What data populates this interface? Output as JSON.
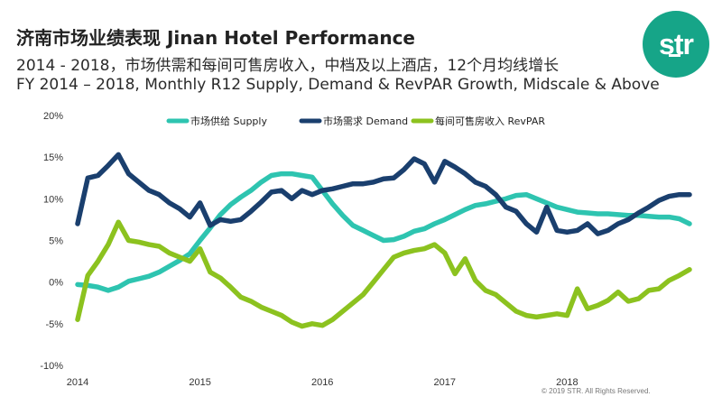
{
  "header": {
    "title": "济南市场业绩表现 Jinan Hotel Performance",
    "subtitle_cn": "2014 - 2018，市场供需和每间可售房收入，中档及以上酒店，12个月均线增长",
    "subtitle_en": "FY 2014 – 2018, Monthly R12 Supply, Demand & RevPAR Growth, Midscale & Above"
  },
  "logo": {
    "text": "str",
    "color": "#16a588"
  },
  "footer": {
    "copyright": "© 2019 STR. All Rights Reserved."
  },
  "chart_data": {
    "type": "line",
    "title": "",
    "xlabel": "",
    "ylabel": "",
    "x_ticks": [
      "2014",
      "2015",
      "2016",
      "2017",
      "2018"
    ],
    "y_ticks": [
      "20%",
      "15%",
      "10%",
      "5%",
      "0%",
      "-5%",
      "-10%"
    ],
    "ylim": [
      -10,
      20
    ],
    "grid": false,
    "legend_position": "top",
    "x_range": [
      2014.0,
      2019.0
    ],
    "series": [
      {
        "name": "市场供给 Supply",
        "color": "#2ec4b0",
        "x": [
          2014.0,
          2014.083,
          2014.167,
          2014.25,
          2014.333,
          2014.417,
          2014.5,
          2014.583,
          2014.667,
          2014.75,
          2014.833,
          2014.917,
          2015.0,
          2015.083,
          2015.167,
          2015.25,
          2015.333,
          2015.417,
          2015.5,
          2015.583,
          2015.667,
          2015.75,
          2015.833,
          2015.917,
          2016.0,
          2016.083,
          2016.167,
          2016.25,
          2016.333,
          2016.417,
          2016.5,
          2016.583,
          2016.667,
          2016.75,
          2016.833,
          2016.917,
          2017.0,
          2017.083,
          2017.167,
          2017.25,
          2017.333,
          2017.417,
          2017.5,
          2017.583,
          2017.667,
          2017.75,
          2017.833,
          2017.917,
          2018.0,
          2018.083,
          2018.167,
          2018.25,
          2018.333,
          2018.417,
          2018.5,
          2018.583,
          2018.667,
          2018.75,
          2018.833,
          2018.917,
          2019.0
        ],
        "values": [
          -0.3,
          -0.4,
          -0.6,
          -1.0,
          -0.6,
          0.1,
          0.4,
          0.7,
          1.2,
          1.9,
          2.6,
          3.4,
          5.0,
          6.5,
          8.1,
          9.3,
          10.2,
          11.0,
          12.0,
          12.8,
          13.0,
          13.0,
          12.8,
          12.6,
          11.0,
          9.4,
          8.0,
          6.8,
          6.2,
          5.6,
          5.0,
          5.1,
          5.5,
          6.1,
          6.4,
          7.0,
          7.5,
          8.1,
          8.7,
          9.2,
          9.4,
          9.7,
          10.0,
          10.4,
          10.5,
          10.0,
          9.5,
          9.0,
          8.7,
          8.4,
          8.3,
          8.2,
          8.2,
          8.1,
          8.0,
          8.0,
          7.9,
          7.8,
          7.8,
          7.6,
          7.0
        ]
      },
      {
        "name": "市场需求 Demand",
        "color": "#1a3f6e",
        "x": [
          2014.0,
          2014.083,
          2014.167,
          2014.25,
          2014.333,
          2014.417,
          2014.5,
          2014.583,
          2014.667,
          2014.75,
          2014.833,
          2014.917,
          2015.0,
          2015.083,
          2015.167,
          2015.25,
          2015.333,
          2015.417,
          2015.5,
          2015.583,
          2015.667,
          2015.75,
          2015.833,
          2015.917,
          2016.0,
          2016.083,
          2016.167,
          2016.25,
          2016.333,
          2016.417,
          2016.5,
          2016.583,
          2016.667,
          2016.75,
          2016.833,
          2016.917,
          2017.0,
          2017.083,
          2017.167,
          2017.25,
          2017.333,
          2017.417,
          2017.5,
          2017.583,
          2017.667,
          2017.75,
          2017.833,
          2017.917,
          2018.0,
          2018.083,
          2018.167,
          2018.25,
          2018.333,
          2018.417,
          2018.5,
          2018.583,
          2018.667,
          2018.75,
          2018.833,
          2018.917,
          2019.0
        ],
        "values": [
          7.0,
          12.5,
          12.8,
          14.0,
          15.3,
          13.0,
          12.0,
          11.0,
          10.5,
          9.5,
          8.8,
          7.8,
          9.5,
          6.8,
          7.5,
          7.3,
          7.5,
          8.5,
          9.6,
          10.8,
          11.0,
          10.0,
          11.0,
          10.5,
          11.0,
          11.2,
          11.5,
          11.8,
          11.8,
          12.0,
          12.4,
          12.5,
          13.5,
          14.8,
          14.2,
          12.0,
          14.5,
          13.8,
          13.0,
          12.0,
          11.5,
          10.5,
          9.0,
          8.5,
          7.0,
          6.0,
          9.0,
          6.2,
          6.0,
          6.2,
          7.0,
          5.8,
          6.2,
          7.0,
          7.5,
          8.3,
          9.0,
          9.8,
          10.3,
          10.5,
          10.5
        ]
      },
      {
        "name": "每间可售房收入 RevPAR",
        "color": "#8cc21f",
        "x": [
          2014.0,
          2014.083,
          2014.167,
          2014.25,
          2014.333,
          2014.417,
          2014.5,
          2014.583,
          2014.667,
          2014.75,
          2014.833,
          2014.917,
          2015.0,
          2015.083,
          2015.167,
          2015.25,
          2015.333,
          2015.417,
          2015.5,
          2015.583,
          2015.667,
          2015.75,
          2015.833,
          2015.917,
          2016.0,
          2016.083,
          2016.167,
          2016.25,
          2016.333,
          2016.417,
          2016.5,
          2016.583,
          2016.667,
          2016.75,
          2016.833,
          2016.917,
          2017.0,
          2017.083,
          2017.167,
          2017.25,
          2017.333,
          2017.417,
          2017.5,
          2017.583,
          2017.667,
          2017.75,
          2017.833,
          2017.917,
          2018.0,
          2018.083,
          2018.167,
          2018.25,
          2018.333,
          2018.417,
          2018.5,
          2018.583,
          2018.667,
          2018.75,
          2018.833,
          2018.917,
          2019.0
        ],
        "values": [
          -4.5,
          0.8,
          2.5,
          4.5,
          7.2,
          5.0,
          4.8,
          4.5,
          4.3,
          3.5,
          3.0,
          2.5,
          4.0,
          1.2,
          0.5,
          -0.6,
          -1.8,
          -2.3,
          -3.0,
          -3.5,
          -4.0,
          -4.8,
          -5.3,
          -5.0,
          -5.2,
          -4.5,
          -3.5,
          -2.5,
          -1.5,
          0.0,
          1.5,
          3.0,
          3.5,
          3.8,
          4.0,
          4.5,
          3.5,
          1.0,
          2.8,
          0.2,
          -1.0,
          -1.5,
          -2.5,
          -3.5,
          -4.0,
          -4.2,
          -4.0,
          -3.8,
          -4.0,
          -0.8,
          -3.2,
          -2.8,
          -2.2,
          -1.2,
          -2.3,
          -2.0,
          -1.0,
          -0.8,
          0.2,
          0.8,
          1.5
        ]
      }
    ]
  }
}
